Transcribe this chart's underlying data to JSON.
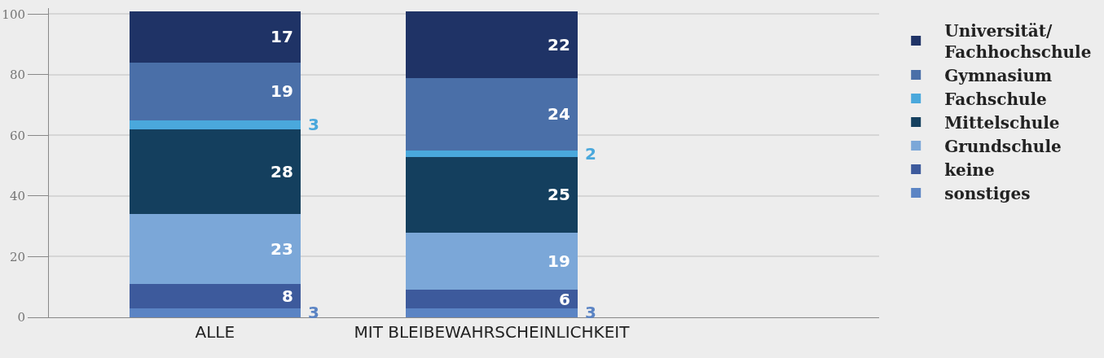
{
  "chart_data": {
    "type": "bar",
    "stacked": true,
    "categories": [
      "ALLE",
      "MIT BLEIBEWAHRSCHEINLICHKEIT"
    ],
    "series": [
      {
        "name": "sonstiges",
        "color": "#5b84c4",
        "values": [
          3,
          3
        ]
      },
      {
        "name": "keine",
        "color": "#3d5a9c",
        "values": [
          8,
          6
        ]
      },
      {
        "name": "Grundschule",
        "color": "#7ba7d8",
        "values": [
          23,
          19
        ]
      },
      {
        "name": "Mittelschule",
        "color": "#143f5e",
        "values": [
          28,
          25
        ]
      },
      {
        "name": "Fachschule",
        "color": "#4aa8dc",
        "values": [
          3,
          2
        ]
      },
      {
        "name": "Gymnasium",
        "color": "#4a6fa8",
        "values": [
          19,
          24
        ]
      },
      {
        "name": "Universität/\nFachhochschule",
        "color": "#1f3366",
        "values": [
          17,
          22
        ]
      }
    ],
    "ylim": [
      0,
      102
    ],
    "yticks": [
      0,
      20,
      40,
      60,
      80,
      100
    ],
    "grid": "y",
    "legend": "right",
    "data_labels": true
  }
}
